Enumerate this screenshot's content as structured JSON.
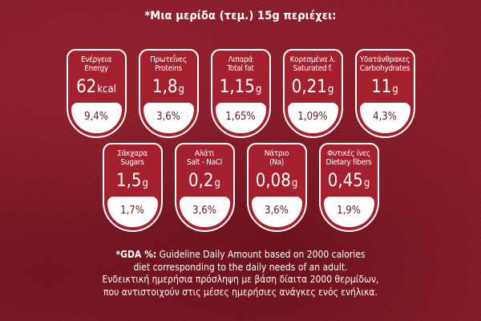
{
  "header": {
    "text": "*Μια μερίδα (τεμ.) 15g περιέχει:"
  },
  "labels": [
    {
      "name_gr": "Ενέργεια",
      "name_en": "Energy",
      "value": "62",
      "unit": "kcal",
      "gda": "9,4%"
    },
    {
      "name_gr": "Πρωτεΐνες",
      "name_en": "Proteins",
      "value": "1,8",
      "unit": "g",
      "gda": "3,6%"
    },
    {
      "name_gr": "Λιπαρά",
      "name_en": "Total fat",
      "value": "1,15",
      "unit": "g",
      "gda": "1,65%"
    },
    {
      "name_gr": "Κορεσμένα λ.",
      "name_en": "Saturated f.",
      "value": "0,21",
      "unit": "g",
      "gda": "1,09%"
    },
    {
      "name_gr": "Υδατάνθρακες",
      "name_en": "Carbohydrates",
      "value": "11",
      "unit": "g",
      "gda": "4,3%"
    },
    {
      "name_gr": "Σάκχαρα",
      "name_en": "Sugars",
      "value": "1,5",
      "unit": "g",
      "gda": "1,7%"
    },
    {
      "name_gr": "Αλάτι",
      "name_en": "Salt - NaCl",
      "value": "0,2",
      "unit": "g",
      "gda": "3,6%"
    },
    {
      "name_gr": "Νάτριο",
      "name_en": "(Na)",
      "value": "0,08",
      "unit": "g",
      "gda": "3,6%"
    },
    {
      "name_gr": "Φυτικές ίνες",
      "name_en": "Dietary fibers",
      "value": "0,45",
      "unit": "g",
      "gda": "1,9%"
    }
  ],
  "footer": {
    "line1_bold": "*GDA %:",
    "line1_rest": "Guideline Daily Amount based on 2000 calories",
    "line2": "diet corresponding to the daily needs of an adult.",
    "line3": "Ενδεικτική ημερήσια πρόσληψη με βάση δίαιτα 2000 θερμίδων,",
    "line4": "που αντιστοιχούν στις μέσες ημερήσιες ανάγκες ενός ενήλικα."
  },
  "colors": {
    "background": "#861c2a",
    "label_fill": "#a4202f",
    "label_border": "#ffffff",
    "gda_text": "#5a1a20"
  }
}
